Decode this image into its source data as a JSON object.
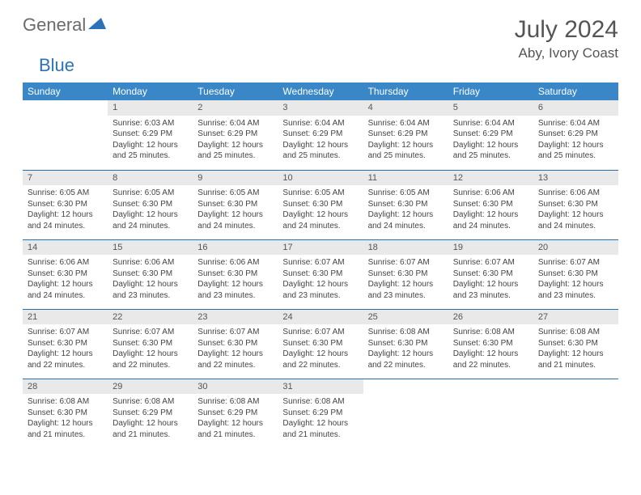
{
  "logo": {
    "text1": "General",
    "text2": "Blue"
  },
  "title": "July 2024",
  "location": "Aby, Ivory Coast",
  "colors": {
    "header_bg": "#3a87c8",
    "header_text": "#ffffff",
    "daynum_bg": "#e9e9e9",
    "week_divider": "#2a6fa8",
    "logo_accent": "#2a73b8",
    "body_text": "#444444",
    "page_bg": "#ffffff"
  },
  "dayHeaders": [
    "Sunday",
    "Monday",
    "Tuesday",
    "Wednesday",
    "Thursday",
    "Friday",
    "Saturday"
  ],
  "weeks": [
    [
      {
        "n": "",
        "sunrise": "",
        "sunset": "",
        "daylight": "",
        "empty": true
      },
      {
        "n": "1",
        "sunrise": "Sunrise: 6:03 AM",
        "sunset": "Sunset: 6:29 PM",
        "daylight": "Daylight: 12 hours and 25 minutes."
      },
      {
        "n": "2",
        "sunrise": "Sunrise: 6:04 AM",
        "sunset": "Sunset: 6:29 PM",
        "daylight": "Daylight: 12 hours and 25 minutes."
      },
      {
        "n": "3",
        "sunrise": "Sunrise: 6:04 AM",
        "sunset": "Sunset: 6:29 PM",
        "daylight": "Daylight: 12 hours and 25 minutes."
      },
      {
        "n": "4",
        "sunrise": "Sunrise: 6:04 AM",
        "sunset": "Sunset: 6:29 PM",
        "daylight": "Daylight: 12 hours and 25 minutes."
      },
      {
        "n": "5",
        "sunrise": "Sunrise: 6:04 AM",
        "sunset": "Sunset: 6:29 PM",
        "daylight": "Daylight: 12 hours and 25 minutes."
      },
      {
        "n": "6",
        "sunrise": "Sunrise: 6:04 AM",
        "sunset": "Sunset: 6:29 PM",
        "daylight": "Daylight: 12 hours and 25 minutes."
      }
    ],
    [
      {
        "n": "7",
        "sunrise": "Sunrise: 6:05 AM",
        "sunset": "Sunset: 6:30 PM",
        "daylight": "Daylight: 12 hours and 24 minutes."
      },
      {
        "n": "8",
        "sunrise": "Sunrise: 6:05 AM",
        "sunset": "Sunset: 6:30 PM",
        "daylight": "Daylight: 12 hours and 24 minutes."
      },
      {
        "n": "9",
        "sunrise": "Sunrise: 6:05 AM",
        "sunset": "Sunset: 6:30 PM",
        "daylight": "Daylight: 12 hours and 24 minutes."
      },
      {
        "n": "10",
        "sunrise": "Sunrise: 6:05 AM",
        "sunset": "Sunset: 6:30 PM",
        "daylight": "Daylight: 12 hours and 24 minutes."
      },
      {
        "n": "11",
        "sunrise": "Sunrise: 6:05 AM",
        "sunset": "Sunset: 6:30 PM",
        "daylight": "Daylight: 12 hours and 24 minutes."
      },
      {
        "n": "12",
        "sunrise": "Sunrise: 6:06 AM",
        "sunset": "Sunset: 6:30 PM",
        "daylight": "Daylight: 12 hours and 24 minutes."
      },
      {
        "n": "13",
        "sunrise": "Sunrise: 6:06 AM",
        "sunset": "Sunset: 6:30 PM",
        "daylight": "Daylight: 12 hours and 24 minutes."
      }
    ],
    [
      {
        "n": "14",
        "sunrise": "Sunrise: 6:06 AM",
        "sunset": "Sunset: 6:30 PM",
        "daylight": "Daylight: 12 hours and 24 minutes."
      },
      {
        "n": "15",
        "sunrise": "Sunrise: 6:06 AM",
        "sunset": "Sunset: 6:30 PM",
        "daylight": "Daylight: 12 hours and 23 minutes."
      },
      {
        "n": "16",
        "sunrise": "Sunrise: 6:06 AM",
        "sunset": "Sunset: 6:30 PM",
        "daylight": "Daylight: 12 hours and 23 minutes."
      },
      {
        "n": "17",
        "sunrise": "Sunrise: 6:07 AM",
        "sunset": "Sunset: 6:30 PM",
        "daylight": "Daylight: 12 hours and 23 minutes."
      },
      {
        "n": "18",
        "sunrise": "Sunrise: 6:07 AM",
        "sunset": "Sunset: 6:30 PM",
        "daylight": "Daylight: 12 hours and 23 minutes."
      },
      {
        "n": "19",
        "sunrise": "Sunrise: 6:07 AM",
        "sunset": "Sunset: 6:30 PM",
        "daylight": "Daylight: 12 hours and 23 minutes."
      },
      {
        "n": "20",
        "sunrise": "Sunrise: 6:07 AM",
        "sunset": "Sunset: 6:30 PM",
        "daylight": "Daylight: 12 hours and 23 minutes."
      }
    ],
    [
      {
        "n": "21",
        "sunrise": "Sunrise: 6:07 AM",
        "sunset": "Sunset: 6:30 PM",
        "daylight": "Daylight: 12 hours and 22 minutes."
      },
      {
        "n": "22",
        "sunrise": "Sunrise: 6:07 AM",
        "sunset": "Sunset: 6:30 PM",
        "daylight": "Daylight: 12 hours and 22 minutes."
      },
      {
        "n": "23",
        "sunrise": "Sunrise: 6:07 AM",
        "sunset": "Sunset: 6:30 PM",
        "daylight": "Daylight: 12 hours and 22 minutes."
      },
      {
        "n": "24",
        "sunrise": "Sunrise: 6:07 AM",
        "sunset": "Sunset: 6:30 PM",
        "daylight": "Daylight: 12 hours and 22 minutes."
      },
      {
        "n": "25",
        "sunrise": "Sunrise: 6:08 AM",
        "sunset": "Sunset: 6:30 PM",
        "daylight": "Daylight: 12 hours and 22 minutes."
      },
      {
        "n": "26",
        "sunrise": "Sunrise: 6:08 AM",
        "sunset": "Sunset: 6:30 PM",
        "daylight": "Daylight: 12 hours and 22 minutes."
      },
      {
        "n": "27",
        "sunrise": "Sunrise: 6:08 AM",
        "sunset": "Sunset: 6:30 PM",
        "daylight": "Daylight: 12 hours and 21 minutes."
      }
    ],
    [
      {
        "n": "28",
        "sunrise": "Sunrise: 6:08 AM",
        "sunset": "Sunset: 6:30 PM",
        "daylight": "Daylight: 12 hours and 21 minutes."
      },
      {
        "n": "29",
        "sunrise": "Sunrise: 6:08 AM",
        "sunset": "Sunset: 6:29 PM",
        "daylight": "Daylight: 12 hours and 21 minutes."
      },
      {
        "n": "30",
        "sunrise": "Sunrise: 6:08 AM",
        "sunset": "Sunset: 6:29 PM",
        "daylight": "Daylight: 12 hours and 21 minutes."
      },
      {
        "n": "31",
        "sunrise": "Sunrise: 6:08 AM",
        "sunset": "Sunset: 6:29 PM",
        "daylight": "Daylight: 12 hours and 21 minutes."
      },
      {
        "n": "",
        "sunrise": "",
        "sunset": "",
        "daylight": "",
        "empty": true
      },
      {
        "n": "",
        "sunrise": "",
        "sunset": "",
        "daylight": "",
        "empty": true
      },
      {
        "n": "",
        "sunrise": "",
        "sunset": "",
        "daylight": "",
        "empty": true
      }
    ]
  ]
}
